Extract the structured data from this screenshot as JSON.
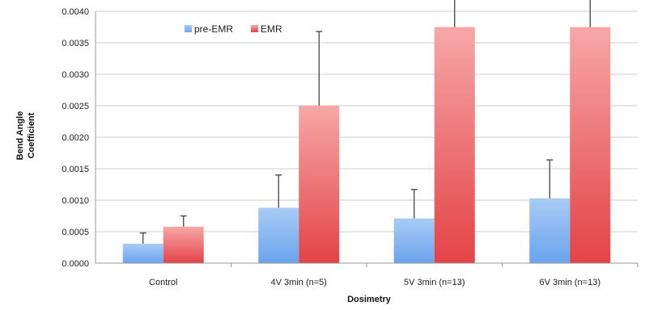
{
  "chart_data": {
    "type": "bar",
    "title": "",
    "xlabel": "Dosimetry",
    "ylabel_lines": [
      "Bend Angle",
      "Coefficient"
    ],
    "ylim": [
      0,
      0.004
    ],
    "yticks": [
      0,
      0.0005,
      0.001,
      0.0015,
      0.002,
      0.0025,
      0.003,
      0.0035,
      0.004
    ],
    "ytick_labels": [
      "0.0000",
      "0.0005",
      "0.0010",
      "0.0015",
      "0.0020",
      "0.0025",
      "0.0030",
      "0.0035",
      "0.0040"
    ],
    "categories": [
      "Control",
      "4V 3min (n=5)",
      "5V 3min (n=13)",
      "6V 3min (n=13)"
    ],
    "series": [
      {
        "name": "pre-EMR",
        "color": "#6aa4ee",
        "color_light": "#a9cbf5",
        "values": [
          0.00031,
          0.00088,
          0.00071,
          0.00103
        ],
        "error": [
          0.00017,
          0.00052,
          0.00046,
          0.00061
        ]
      },
      {
        "name": "EMR",
        "color": "#e8474b",
        "color_light": "#f7a7a7",
        "values": [
          0.00058,
          0.0025,
          0.00375,
          0.00375
        ],
        "error": [
          0.00017,
          0.00118,
          0.0018,
          0.00135
        ]
      }
    ],
    "grid": true,
    "legend_position": "top-left"
  }
}
